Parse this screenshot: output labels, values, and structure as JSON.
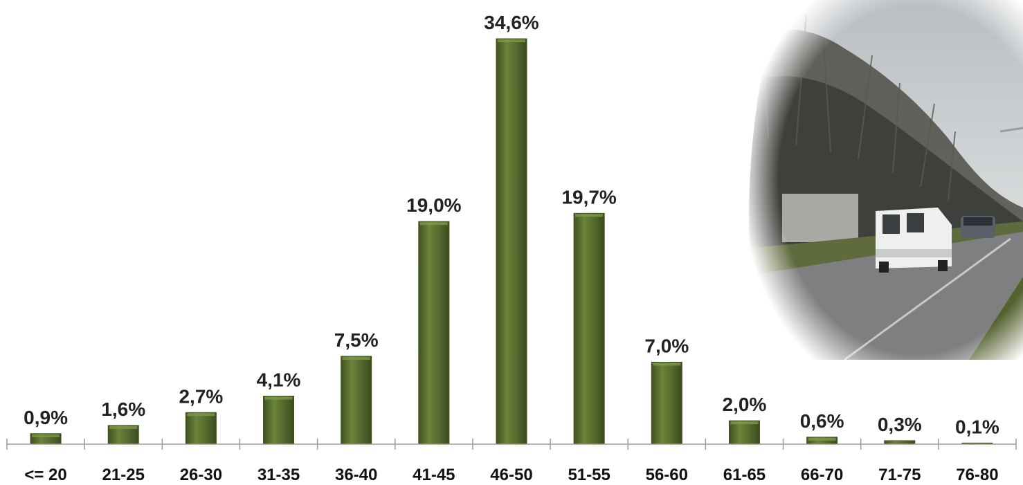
{
  "chart_data": {
    "type": "bar",
    "categories": [
      "<= 20",
      "21-25",
      "26-30",
      "31-35",
      "36-40",
      "41-45",
      "46-50",
      "51-55",
      "56-60",
      "61-65",
      "66-70",
      "71-75",
      "76-80"
    ],
    "values": [
      0.9,
      1.6,
      2.7,
      4.1,
      7.5,
      19.0,
      34.6,
      19.7,
      7.0,
      2.0,
      0.6,
      0.3,
      0.1
    ],
    "value_labels": [
      "0,9%",
      "1,6%",
      "2,7%",
      "4,1%",
      "7,5%",
      "19,0%",
      "34,6%",
      "19,7%",
      "7,0%",
      "2,0%",
      "0,6%",
      "0,3%",
      "0,1%"
    ],
    "title": "",
    "xlabel": "",
    "ylabel": "",
    "ylim": [
      0,
      35
    ],
    "grid": false,
    "legend": "none",
    "bar_color": "#556b2f",
    "bar_color_dark": "#3f5220",
    "bar_color_light": "#7e9a4a"
  },
  "photo": {
    "icon": "road-photo-icon",
    "sky_color": "#cfd3d6",
    "tree_color": "#4a4a45",
    "grass_color": "#5f6b3c",
    "road_color": "#7d7f80"
  }
}
